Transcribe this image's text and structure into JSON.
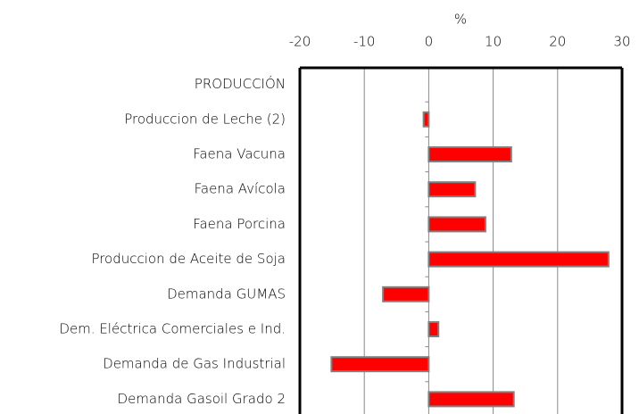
{
  "chart_data": {
    "type": "bar",
    "orientation": "horizontal",
    "x_label": "%",
    "categories": [
      "PRODUCCIÓN",
      "Produccion de Leche (2)",
      "Faena Vacuna",
      "Faena Avícola",
      "Faena Porcina",
      "Produccion de Aceite de Soja",
      "Demanda  GUMAS",
      "Dem. Eléctrica Comerciales e Ind.",
      "Demanda de Gas Industrial",
      "Demanda Gasoil Grado 2"
    ],
    "values": [
      null,
      -0.8,
      12.8,
      7.2,
      8.8,
      27.9,
      -7.1,
      1.5,
      -15.1,
      13.2
    ],
    "color": "#ff0000",
    "xlim": [
      -20,
      30
    ],
    "xticks": [
      -20,
      -10,
      0,
      10,
      20,
      30
    ],
    "grid": true
  }
}
